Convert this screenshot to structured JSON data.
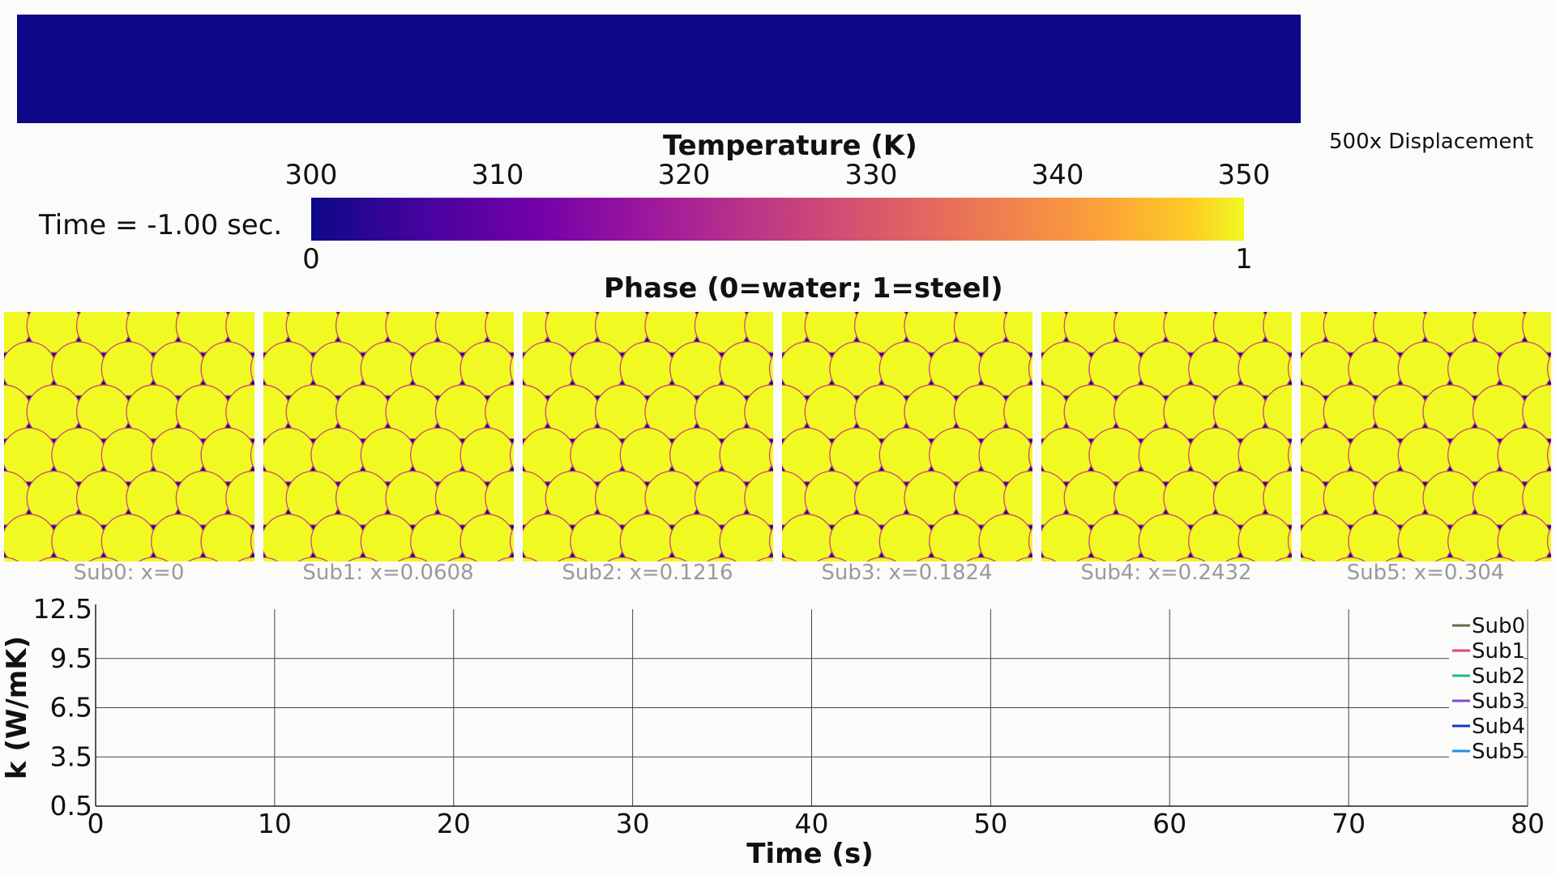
{
  "displacement_label": "500x Displacement",
  "temperature_title": "Temperature (K)",
  "temperature_ticks": [
    "300",
    "310",
    "320",
    "330",
    "340",
    "350"
  ],
  "time_label": "Time = -1.00 sec.",
  "phase_ticks": [
    "0",
    "1"
  ],
  "phase_title": "Phase (0=water; 1=steel)",
  "subdomains": [
    {
      "label": "Sub0: x=0"
    },
    {
      "label": "Sub1: x=0.0608"
    },
    {
      "label": "Sub2: x=0.1216"
    },
    {
      "label": "Sub3: x=0.1824"
    },
    {
      "label": "Sub4: x=0.2432"
    },
    {
      "label": "Sub5: x=0.304"
    }
  ],
  "colors": {
    "water": "#0d0887",
    "steel": "#f0f921",
    "interface": "#cc4778"
  },
  "chart_data": {
    "type": "line",
    "xlabel": "Time (s)",
    "ylabel": "k (W/mK)",
    "xlim": [
      0,
      80
    ],
    "ylim": [
      0.5,
      12.5
    ],
    "x_ticks": [
      0,
      10,
      20,
      30,
      40,
      50,
      60,
      70,
      80
    ],
    "y_ticks": [
      0.5,
      3.5,
      6.5,
      9.5,
      12.5
    ],
    "grid": true,
    "legend_position": "right",
    "series": [
      {
        "name": "Sub0",
        "color": "#6b6b45",
        "x": [],
        "y": []
      },
      {
        "name": "Sub1",
        "color": "#e0457b",
        "x": [],
        "y": []
      },
      {
        "name": "Sub2",
        "color": "#1fb895",
        "x": [],
        "y": []
      },
      {
        "name": "Sub3",
        "color": "#7b4fd3",
        "x": [],
        "y": []
      },
      {
        "name": "Sub4",
        "color": "#1337c9",
        "x": [],
        "y": []
      },
      {
        "name": "Sub5",
        "color": "#1e90e6",
        "x": [],
        "y": []
      }
    ]
  }
}
